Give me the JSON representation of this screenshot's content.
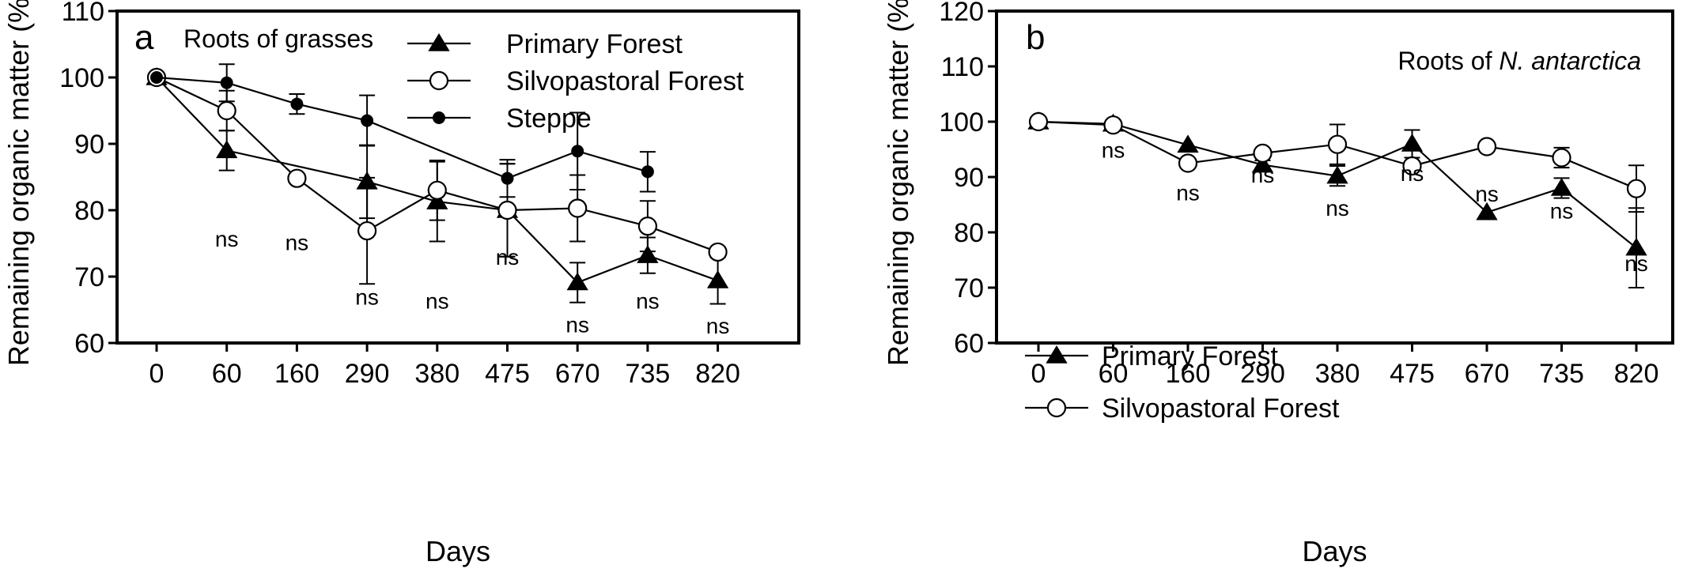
{
  "chart_data": [
    {
      "type": "line",
      "panel_label": "a",
      "title": "Roots of grasses",
      "title_italic": "",
      "xlabel": "Days",
      "ylabel": "Remaining organic matter (%)",
      "categories": [
        "0",
        "60",
        "160",
        "290",
        "380",
        "475",
        "670",
        "735",
        "820"
      ],
      "ylim": [
        60,
        110
      ],
      "yticks": [
        60,
        70,
        80,
        90,
        100,
        110
      ],
      "grid": false,
      "legend_position": "top-right",
      "series": [
        {
          "name": "Primary Forest",
          "marker": "triangle",
          "values": [
            100,
            89,
            null,
            84.3,
            81.3,
            80,
            69.1,
            73.2,
            69.4
          ],
          "error": [
            0,
            3,
            null,
            5.5,
            6,
            7,
            3,
            2.7,
            3.5
          ]
        },
        {
          "name": "Silvopastoral Forest",
          "marker": "open-circle",
          "values": [
            100,
            95,
            84.8,
            76.9,
            83,
            80,
            80.3,
            77.6,
            73.7
          ],
          "error": [
            0,
            3,
            0,
            8,
            4.5,
            7,
            5,
            3.8,
            0.5
          ]
        },
        {
          "name": "Steppe",
          "marker": "filled-circle",
          "values": [
            100,
            99.2,
            96,
            93.5,
            null,
            84.8,
            88.9,
            85.8,
            null
          ],
          "error": [
            0,
            2.8,
            1.5,
            3.8,
            null,
            2.8,
            5.8,
            3,
            null
          ]
        }
      ],
      "annotations": [
        {
          "category": "60",
          "text": "ns",
          "y": 74.5
        },
        {
          "category": "160",
          "text": "ns",
          "y": 74
        },
        {
          "category": "290",
          "text": "ns",
          "y": 65.8
        },
        {
          "category": "380",
          "text": "ns",
          "y": 65.2
        },
        {
          "category": "475",
          "text": "ns",
          "y": 71.8
        },
        {
          "category": "670",
          "text": "ns",
          "y": 61.6
        },
        {
          "category": "735",
          "text": "ns",
          "y": 65.2
        },
        {
          "category": "820",
          "text": "ns",
          "y": 61.4
        }
      ]
    },
    {
      "type": "line",
      "panel_label": "b",
      "title": "Roots of ",
      "title_italic": "N. antarctica",
      "xlabel": "Days",
      "ylabel": "Remaining organic matter (%)",
      "categories": [
        "0",
        "60",
        "160",
        "290",
        "380",
        "475",
        "670",
        "735",
        "820"
      ],
      "ylim": [
        60,
        120
      ],
      "yticks": [
        60,
        70,
        80,
        90,
        100,
        110,
        120
      ],
      "grid": false,
      "legend_position": "bottom-left",
      "series": [
        {
          "name": "Primary Forest",
          "marker": "triangle",
          "values": [
            100,
            99.6,
            95.8,
            92.2,
            90.2,
            96,
            83.6,
            88,
            77.2
          ],
          "error": [
            0,
            0,
            0,
            0.8,
            1.8,
            2.5,
            0,
            1.8,
            7.2
          ]
        },
        {
          "name": "Silvopastoral Forest",
          "marker": "open-circle",
          "values": [
            100,
            99.4,
            92.5,
            94.3,
            95.9,
            92,
            95.5,
            93.5,
            87.9
          ],
          "error": [
            0,
            0,
            0,
            0.8,
            3.6,
            0,
            0,
            1.8,
            4.2
          ]
        }
      ],
      "annotations": [
        {
          "category": "60",
          "text": "ns",
          "y": 93.5
        },
        {
          "category": "160",
          "text": "ns",
          "y": 85.8
        },
        {
          "category": "290",
          "text": "ns",
          "y": 89
        },
        {
          "category": "380",
          "text": "ns",
          "y": 83
        },
        {
          "category": "475",
          "text": "ns",
          "y": 89.3
        },
        {
          "category": "670",
          "text": "ns",
          "y": 85.6
        },
        {
          "category": "735",
          "text": "ns",
          "y": 82.5
        },
        {
          "category": "820",
          "text": "ns",
          "y": 73
        }
      ]
    }
  ]
}
